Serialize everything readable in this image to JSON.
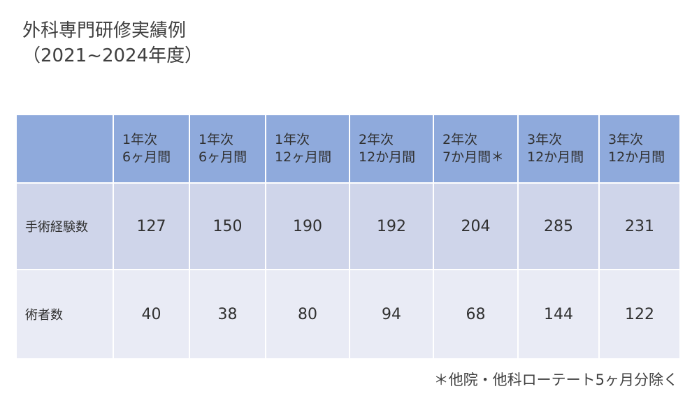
{
  "title": {
    "line1": "外科専門研修実績例",
    "line2": "（2021~2024年度）"
  },
  "table": {
    "corner": "",
    "columns": [
      {
        "line1": "1年次",
        "line2": "6ヶ月間"
      },
      {
        "line1": "1年次",
        "line2": "6ヶ月間"
      },
      {
        "line1": "1年次",
        "line2": "12ヶ月間"
      },
      {
        "line1": "2年次",
        "line2": "12か月間"
      },
      {
        "line1": "2年次",
        "line2": "7か月間＊"
      },
      {
        "line1": "3年次",
        "line2": "12か月間"
      },
      {
        "line1": "3年次",
        "line2": "12か月間"
      }
    ],
    "rows": [
      {
        "label": "手術経験数",
        "values": [
          "127",
          "150",
          "190",
          "192",
          "204",
          "285",
          "231"
        ]
      },
      {
        "label": "術者数",
        "values": [
          "40",
          "38",
          "80",
          "94",
          "68",
          "144",
          "122"
        ]
      }
    ]
  },
  "footnote": "＊他院・他科ローテート5ヶ月分除く",
  "colors": {
    "header_bg": "#8faadc",
    "row1_bg": "#cfd5ea",
    "row2_bg": "#e9ebf5"
  }
}
